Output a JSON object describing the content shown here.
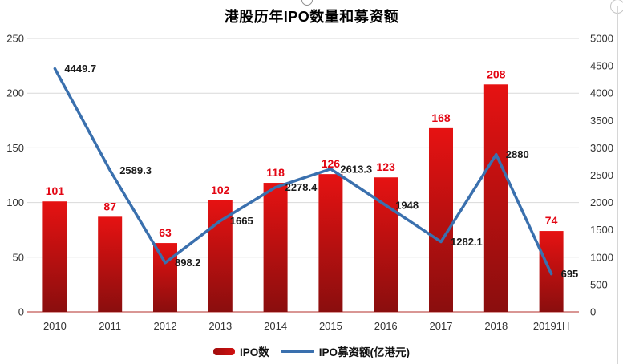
{
  "title": "港股历年IPO数量和募资额",
  "chart_data": {
    "type": "combo",
    "title": "港股历年IPO数量和募资额",
    "categories": [
      "2010",
      "2011",
      "2012",
      "2013",
      "2014",
      "2015",
      "2016",
      "2017",
      "2018",
      "20191H"
    ],
    "series": [
      {
        "name": "IPO数",
        "type": "bar",
        "axis": "left",
        "values": [
          101,
          87,
          63,
          102,
          118,
          126,
          123,
          168,
          208,
          74
        ],
        "bar_color_top": "#e61212",
        "bar_color_bottom": "#8a0e0e",
        "label_color": "#e30613"
      },
      {
        "name": "IPO募资额(亿港元)",
        "type": "line",
        "axis": "right",
        "values": [
          4449.7,
          2589.3,
          898.2,
          1665,
          2278.4,
          2613.3,
          1948,
          1282.1,
          2880,
          695
        ],
        "color": "#3a70ae",
        "label_color": "#1a1a1a"
      }
    ],
    "axes": {
      "left": {
        "min": 0,
        "max": 250,
        "step": 50
      },
      "right": {
        "min": 0,
        "max": 5000,
        "step": 500
      }
    },
    "grid": true,
    "legend_position": "bottom",
    "colors": {
      "gridline": "#d9d9d9",
      "x_axis_line": "#d99694",
      "tick_label": "#333333",
      "category_label": "#333333"
    }
  }
}
